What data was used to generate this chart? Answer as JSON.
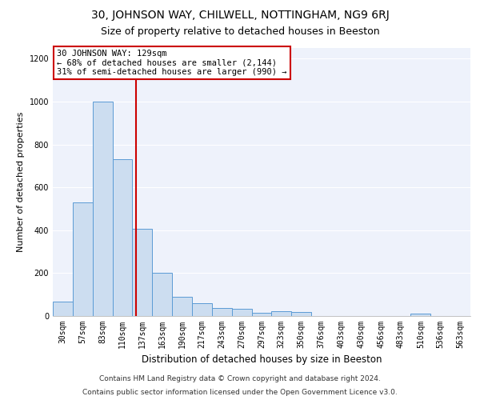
{
  "title1": "30, JOHNSON WAY, CHILWELL, NOTTINGHAM, NG9 6RJ",
  "title2": "Size of property relative to detached houses in Beeston",
  "xlabel": "Distribution of detached houses by size in Beeston",
  "ylabel": "Number of detached properties",
  "categories": [
    "30sqm",
    "57sqm",
    "83sqm",
    "110sqm",
    "137sqm",
    "163sqm",
    "190sqm",
    "217sqm",
    "243sqm",
    "270sqm",
    "297sqm",
    "323sqm",
    "350sqm",
    "376sqm",
    "403sqm",
    "430sqm",
    "456sqm",
    "483sqm",
    "510sqm",
    "536sqm",
    "563sqm"
  ],
  "values": [
    68,
    530,
    1000,
    730,
    405,
    200,
    90,
    58,
    37,
    35,
    15,
    22,
    18,
    0,
    0,
    0,
    0,
    0,
    10,
    0,
    0
  ],
  "bar_color": "#ccddf0",
  "bar_edge_color": "#5b9bd5",
  "vline_color": "#cc0000",
  "vline_x": 3.7,
  "annotation_text": "30 JOHNSON WAY: 129sqm\n← 68% of detached houses are smaller (2,144)\n31% of semi-detached houses are larger (990) →",
  "annotation_box_color": "#ffffff",
  "annotation_box_edge_color": "#cc0000",
  "ylim": [
    0,
    1250
  ],
  "yticks": [
    0,
    200,
    400,
    600,
    800,
    1000,
    1200
  ],
  "background_color": "#eef2fb",
  "footer_line1": "Contains HM Land Registry data © Crown copyright and database right 2024.",
  "footer_line2": "Contains public sector information licensed under the Open Government Licence v3.0.",
  "title1_fontsize": 10,
  "title2_fontsize": 9,
  "xlabel_fontsize": 8.5,
  "ylabel_fontsize": 8,
  "tick_fontsize": 7,
  "annotation_fontsize": 7.5,
  "footer_fontsize": 6.5
}
